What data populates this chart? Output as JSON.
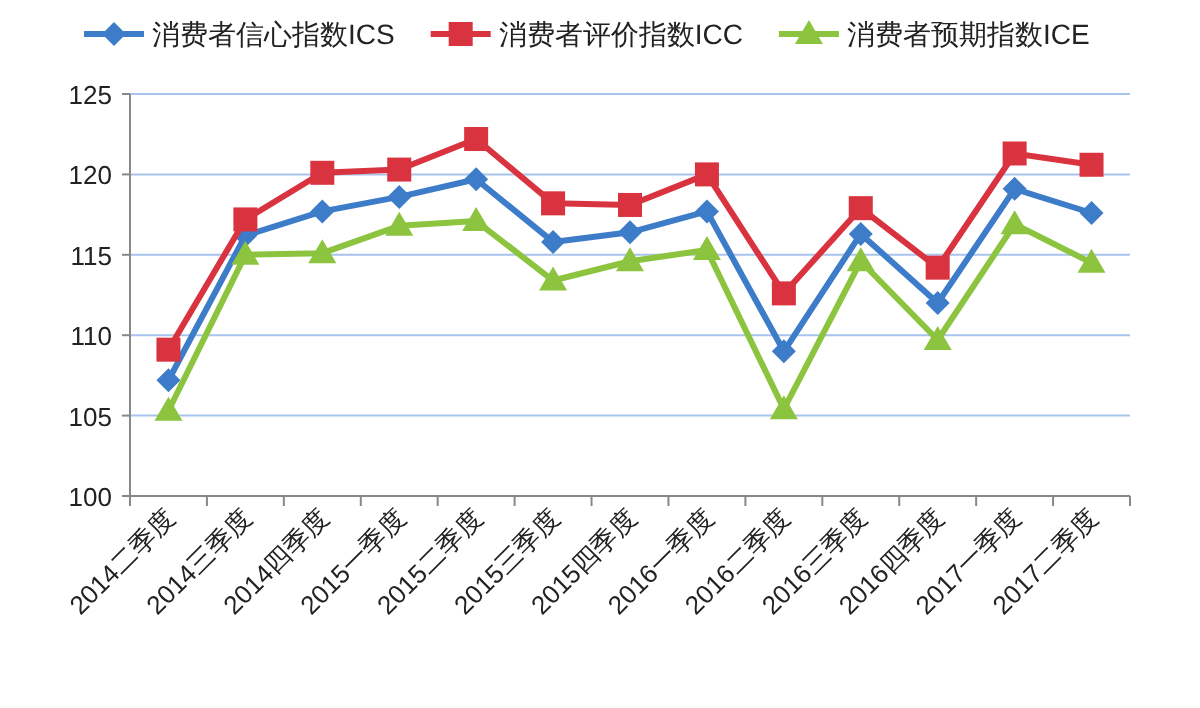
{
  "chart_data": {
    "type": "line",
    "categories": [
      "2014二季度",
      "2014三季度",
      "2014四季度",
      "2015一季度",
      "2015二季度",
      "2015三季度",
      "2015四季度",
      "2016一季度",
      "2016二季度",
      "2016三季度",
      "2016四季度",
      "2017一季度",
      "2017二季度"
    ],
    "series": [
      {
        "name": "消费者信心指数ICS",
        "color": "#3d7cc9",
        "marker": "diamond",
        "values": [
          107.2,
          116.2,
          117.7,
          118.6,
          119.7,
          115.8,
          116.4,
          117.7,
          109,
          116.3,
          112,
          119.1,
          117.6
        ]
      },
      {
        "name": "消费者评价指数ICC",
        "color": "#d9333f",
        "marker": "square",
        "values": [
          109.1,
          117.2,
          120.1,
          120.3,
          122.2,
          118.2,
          118.1,
          120,
          112.6,
          117.9,
          114.2,
          121.3,
          120.6
        ]
      },
      {
        "name": "消费者预期指数ICE",
        "color": "#8cc43f",
        "marker": "triangle",
        "values": [
          105.3,
          115,
          115.1,
          116.8,
          117.1,
          113.4,
          114.6,
          115.3,
          105.4,
          114.6,
          109.7,
          116.9,
          114.5
        ]
      }
    ],
    "ylim": [
      100,
      125
    ],
    "yticks": [
      100,
      105,
      110,
      115,
      120,
      125
    ],
    "grid": "y",
    "legend": "top",
    "line_style": "solid"
  }
}
